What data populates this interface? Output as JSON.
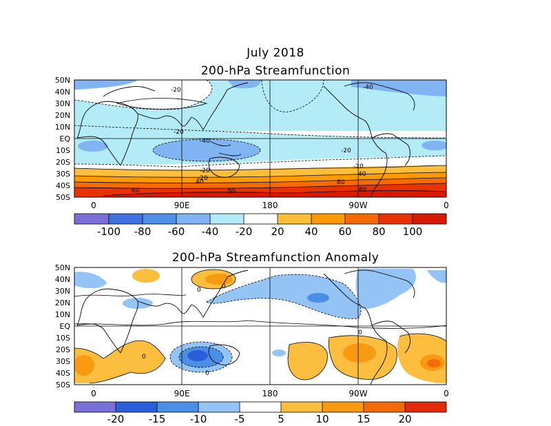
{
  "title": "July 2018",
  "panels": [
    {
      "title": "200-hPa Streamfunction",
      "lat_labels": [
        "50N",
        "40N",
        "30N",
        "20N",
        "10N",
        "EQ",
        "10S",
        "20S",
        "30S",
        "40S",
        "50S"
      ],
      "lon_labels": [
        "0",
        "90E",
        "180",
        "90W",
        "0"
      ],
      "colorbar": {
        "ticks": [
          "-100",
          "-80",
          "-60",
          "-40",
          "-20",
          "20",
          "40",
          "60",
          "80",
          "100"
        ],
        "colors": [
          "#7a6fd6",
          "#3f72e0",
          "#4e90ea",
          "#80b4f2",
          "#b3ecf6",
          "#ffffff",
          "#fdbe3c",
          "#fd9a00",
          "#f76a00",
          "#e83200",
          "#d71a00",
          "#a00000"
        ]
      },
      "contour_labels": [
        "-20",
        "-20",
        "-40",
        "-40",
        "-20",
        "-20",
        "-20",
        "-20",
        "40",
        "40",
        "60",
        "80",
        "80",
        "80"
      ]
    },
    {
      "title": "200-hPa Streamfunction Anomaly",
      "lat_labels": [
        "50N",
        "40N",
        "30N",
        "20N",
        "10N",
        "EQ",
        "10S",
        "20S",
        "30S",
        "40S",
        "50S"
      ],
      "lon_labels": [
        "0",
        "90E",
        "180",
        "90W",
        "0"
      ],
      "colorbar": {
        "ticks": [
          "-20",
          "-15",
          "-10",
          "-5",
          "5",
          "10",
          "15",
          "20"
        ],
        "colors": [
          "#7a6fd6",
          "#2a5fd8",
          "#4a8ee6",
          "#94c4f5",
          "#ffffff",
          "#fcbe3e",
          "#fa9a12",
          "#f26a0a",
          "#e02a0a"
        ]
      },
      "contour_labels": [
        "0",
        "0",
        "0",
        "0",
        "0"
      ]
    }
  ]
}
